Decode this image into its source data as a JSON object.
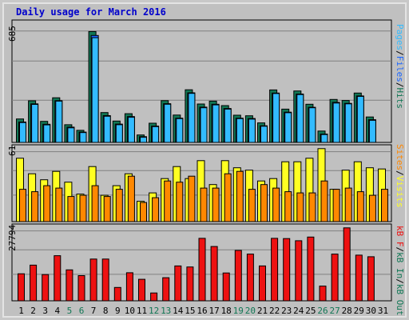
{
  "title": "Daily usage for March 2016",
  "colors": {
    "pages": "#33bbff",
    "files": "#1a66ff",
    "hits": "#117755",
    "visits": "#ffff22",
    "sites": "#ff8800",
    "kb_in": "#117755",
    "kb_out": "#117755",
    "kb": "#ee1111",
    "weekend_label": "#117755",
    "weekday_label": "#000000",
    "panel": "#c0c0c0",
    "grid": "#808080"
  },
  "chart_data": [
    {
      "type": "bar",
      "title": "Daily usage for March 2016",
      "categories": [
        "1",
        "2",
        "3",
        "4",
        "5",
        "6",
        "7",
        "8",
        "9",
        "10",
        "11",
        "12",
        "13",
        "14",
        "15",
        "16",
        "17",
        "18",
        "19",
        "20",
        "21",
        "22",
        "23",
        "24",
        "25",
        "26",
        "27",
        "28",
        "29",
        "30",
        "31"
      ],
      "weekend_days": [
        "5",
        "6",
        "12",
        "13",
        "19",
        "20",
        "26",
        "27"
      ],
      "ymax_label": "685",
      "ylim": [
        0,
        685
      ],
      "grid": true,
      "legend": {
        "position": "right",
        "items": [
          "Pages",
          "Files",
          "Hits"
        ],
        "separator": "/"
      },
      "series": [
        {
          "name": "Hits",
          "values": [
            138,
            245,
            124,
            263,
            104,
            71,
            653,
            176,
            126,
            169,
            44,
            113,
            246,
            161,
            310,
            226,
            243,
            217,
            160,
            157,
            115,
            309,
            196,
            303,
            225,
            67,
            253,
            247,
            291,
            150,
            0
          ]
        },
        {
          "name": "Files",
          "values": [
            120,
            227,
            107,
            246,
            90,
            61,
            630,
            158,
            108,
            152,
            34,
            96,
            228,
            143,
            292,
            208,
            225,
            200,
            143,
            141,
            98,
            291,
            178,
            285,
            207,
            49,
            236,
            230,
            274,
            134,
            0
          ]
        },
        {
          "name": "Pages",
          "values": [
            117,
            224,
            103,
            243,
            86,
            58,
            617,
            154,
            104,
            148,
            30,
            93,
            225,
            140,
            289,
            204,
            221,
            196,
            140,
            137,
            95,
            288,
            175,
            282,
            204,
            46,
            232,
            227,
            271,
            130,
            0
          ]
        }
      ]
    },
    {
      "type": "bar",
      "categories": [
        "1",
        "2",
        "3",
        "4",
        "5",
        "6",
        "7",
        "8",
        "9",
        "10",
        "11",
        "12",
        "13",
        "14",
        "15",
        "16",
        "17",
        "18",
        "19",
        "20",
        "21",
        "22",
        "23",
        "24",
        "25",
        "26",
        "27",
        "28",
        "29",
        "30",
        "31"
      ],
      "ymax_label": "61",
      "ylim": [
        0,
        61
      ],
      "grid": true,
      "legend": {
        "position": "right",
        "items": [
          "Sites",
          "Visits"
        ],
        "separator": "/"
      },
      "series": [
        {
          "name": "Visits",
          "values": [
            53,
            40,
            35,
            42,
            33,
            23,
            46,
            22,
            30,
            40,
            17,
            24,
            36,
            46,
            36,
            51,
            31,
            51,
            45,
            43,
            34,
            36,
            50,
            50,
            53,
            61,
            27,
            43,
            50,
            45,
            44
          ]
        },
        {
          "name": "Sites",
          "values": [
            27,
            25,
            30,
            28,
            21,
            22,
            30,
            21,
            27,
            38,
            16,
            20,
            34,
            33,
            38,
            28,
            28,
            40,
            42,
            27,
            31,
            28,
            25,
            24,
            24,
            34,
            27,
            28,
            25,
            22,
            27
          ]
        }
      ]
    },
    {
      "type": "bar",
      "categories": [
        "1",
        "2",
        "3",
        "4",
        "5",
        "6",
        "7",
        "8",
        "9",
        "10",
        "11",
        "12",
        "13",
        "14",
        "15",
        "16",
        "17",
        "18",
        "19",
        "20",
        "21",
        "22",
        "23",
        "24",
        "25",
        "26",
        "27",
        "28",
        "29",
        "30",
        "31"
      ],
      "ymax_label": "27794",
      "ylim": [
        0,
        27794
      ],
      "grid": true,
      "legend": {
        "position": "right",
        "items": [
          "KBytes",
          "KB In",
          "KB Out"
        ],
        "labels": [
          "kB F",
          "kB In",
          "kB Out"
        ],
        "separator": "/"
      },
      "series": [
        {
          "name": "KBytes",
          "values": [
            10300,
            13600,
            10000,
            17200,
            11800,
            9600,
            15900,
            15900,
            5100,
            10700,
            8200,
            3000,
            8800,
            13300,
            12900,
            23800,
            20700,
            10600,
            19200,
            17800,
            13300,
            23800,
            23700,
            22900,
            24300,
            5600,
            17800,
            27794,
            17400,
            16800,
            0
          ]
        }
      ]
    }
  ],
  "axis": {
    "days": [
      "1",
      "2",
      "3",
      "4",
      "5",
      "6",
      "7",
      "8",
      "9",
      "10",
      "11",
      "12",
      "13",
      "14",
      "15",
      "16",
      "17",
      "18",
      "19",
      "20",
      "21",
      "22",
      "23",
      "24",
      "25",
      "26",
      "27",
      "28",
      "29",
      "30",
      "31"
    ]
  }
}
